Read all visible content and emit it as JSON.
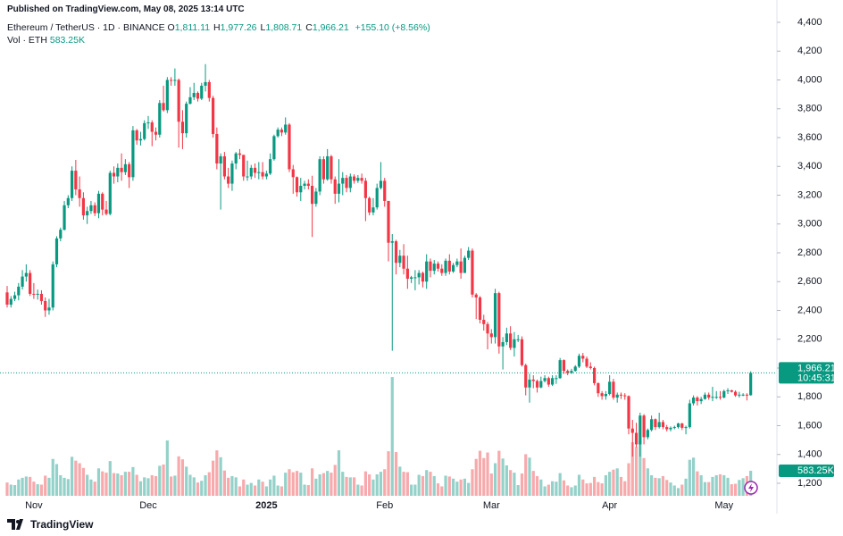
{
  "header": {
    "published": "Published on TradingView.com, May 08, 2025 13:14 UTC",
    "symbol": "Ethereum / TetherUS · 1D · BINANCE",
    "ohlc": [
      {
        "key": "O",
        "text": "1,811.11"
      },
      {
        "key": "H",
        "text": "1,977.26"
      },
      {
        "key": "L",
        "text": "1,808.71"
      },
      {
        "key": "C",
        "text": "1,966.21"
      }
    ],
    "change": "+155.10 (+8.56%)",
    "volume_title": "Vol · ETH",
    "volume_label": "583.25K"
  },
  "chart_data": {
    "type": "candlestick",
    "categories": [
      null,
      null,
      null,
      null,
      null,
      null,
      null,
      "Nov",
      null,
      null,
      null,
      null,
      null,
      null,
      null,
      null,
      null,
      null,
      null,
      null,
      null,
      null,
      null,
      null,
      null,
      null,
      null,
      null,
      null,
      null,
      null,
      null,
      null,
      null,
      null,
      null,
      null,
      "Dec",
      null,
      null,
      null,
      null,
      null,
      null,
      null,
      null,
      null,
      null,
      null,
      null,
      null,
      null,
      null,
      null,
      null,
      null,
      null,
      null,
      null,
      null,
      null,
      null,
      null,
      null,
      null,
      null,
      null,
      null,
      "2025",
      null,
      null,
      null,
      null,
      null,
      null,
      null,
      null,
      null,
      null,
      null,
      null,
      null,
      null,
      null,
      null,
      null,
      null,
      null,
      null,
      null,
      null,
      null,
      null,
      null,
      null,
      null,
      null,
      null,
      null,
      "Feb",
      null,
      null,
      null,
      null,
      null,
      null,
      null,
      null,
      null,
      null,
      null,
      null,
      null,
      null,
      null,
      null,
      null,
      null,
      null,
      null,
      null,
      null,
      null,
      null,
      null,
      null,
      null,
      "Mar",
      null,
      null,
      null,
      null,
      null,
      null,
      null,
      null,
      null,
      null,
      null,
      null,
      null,
      null,
      null,
      null,
      null,
      null,
      null,
      null,
      null,
      null,
      null,
      null,
      null,
      null,
      null,
      null,
      null,
      null,
      "Apr",
      null,
      null,
      null,
      null,
      null,
      null,
      null,
      null,
      null,
      null,
      null,
      null,
      null,
      null,
      null,
      null,
      null,
      null,
      null,
      null,
      null,
      null,
      null,
      null,
      null,
      null,
      null,
      null,
      null,
      "May",
      null,
      null,
      null,
      null,
      null,
      null,
      null
    ],
    "open": [
      2525,
      2440,
      2480,
      2505,
      2565,
      2635,
      2660,
      2515,
      2510,
      2515,
      2465,
      2400,
      2420,
      2720,
      2900,
      2960,
      3130,
      3180,
      3370,
      3240,
      3180,
      3060,
      3090,
      3130,
      3075,
      3210,
      3100,
      3070,
      3355,
      3330,
      3390,
      3360,
      3415,
      3325,
      3650,
      3580,
      3590,
      3700,
      3705,
      3640,
      3620,
      3840,
      3790,
      4000,
      3995,
      4000,
      3710,
      3630,
      3835,
      3880,
      3910,
      3870,
      3960,
      3985,
      3875,
      3625,
      3420,
      3470,
      3330,
      3280,
      3420,
      3490,
      3480,
      3330,
      3330,
      3390,
      3355,
      3360,
      3330,
      3350,
      3450,
      3610,
      3655,
      3635,
      3690,
      3380,
      3325,
      3220,
      3265,
      3280,
      3265,
      3140,
      3225,
      3450,
      3310,
      3470,
      3310,
      3210,
      3280,
      3320,
      3250,
      3330,
      3300,
      3320,
      3300,
      3180,
      3080,
      3115,
      3250,
      3300,
      3160,
      2870,
      2880,
      2730,
      2780,
      2690,
      2620,
      2630,
      2630,
      2660,
      2600,
      2740,
      2675,
      2725,
      2690,
      2660,
      2745,
      2670,
      2715,
      2740,
      2660,
      2765,
      2815,
      2510,
      2490,
      2335,
      2305,
      2240,
      2215,
      2520,
      2150,
      2180,
      2240,
      2140,
      2200,
      2200,
      2020,
      1865,
      1920,
      1910,
      1865,
      1910,
      1930,
      1885,
      1930,
      1930,
      2055,
      1980,
      1965,
      1980,
      2010,
      2085,
      2065,
      2010,
      2000,
      1895,
      1825,
      1805,
      1820,
      1905,
      1795,
      1815,
      1810,
      1805,
      1580,
      1550,
      1470,
      1670,
      1520,
      1570,
      1645,
      1590,
      1625,
      1590,
      1575,
      1585,
      1590,
      1615,
      1585,
      1590,
      1755,
      1795,
      1770,
      1785,
      1815,
      1795,
      1800,
      1800,
      1795,
      1840,
      1845,
      1835,
      1810,
      1815,
      1815,
      1811.11
    ],
    "high": [
      2570,
      2500,
      2530,
      2590,
      2680,
      2720,
      2680,
      2590,
      2545,
      2540,
      2490,
      2480,
      2740,
      2915,
      2975,
      3160,
      3200,
      3400,
      3445,
      3330,
      3220,
      3120,
      3160,
      3150,
      3230,
      3220,
      3160,
      3370,
      3400,
      3420,
      3490,
      3450,
      3430,
      3680,
      3660,
      3640,
      3720,
      3750,
      3720,
      3670,
      3860,
      3960,
      4020,
      4020,
      4080,
      4010,
      3790,
      3850,
      3950,
      3980,
      3920,
      3980,
      4110,
      4000,
      3890,
      3670,
      3490,
      3500,
      3390,
      3440,
      3500,
      3520,
      3480,
      3440,
      3410,
      3420,
      3430,
      3430,
      3370,
      3490,
      3620,
      3670,
      3670,
      3740,
      3700,
      3410,
      3330,
      3320,
      3300,
      3310,
      3335,
      3250,
      3470,
      3470,
      3520,
      3480,
      3330,
      3450,
      3360,
      3340,
      3350,
      3345,
      3340,
      3350,
      3320,
      3190,
      3180,
      3280,
      3430,
      3320,
      3160,
      2930,
      2890,
      2820,
      2860,
      2780,
      2640,
      2680,
      2680,
      2670,
      2790,
      2760,
      2750,
      2740,
      2720,
      2760,
      2790,
      2730,
      2760,
      2830,
      2780,
      2840,
      2830,
      2520,
      2500,
      2370,
      2320,
      2270,
      2550,
      2530,
      2215,
      2280,
      2290,
      2250,
      2230,
      2220,
      2030,
      1960,
      1950,
      1920,
      1940,
      1950,
      1940,
      1950,
      1950,
      2070,
      2060,
      1990,
      1995,
      2020,
      2100,
      2105,
      2080,
      2040,
      2010,
      1900,
      1840,
      1840,
      1950,
      1925,
      1830,
      1830,
      1825,
      1810,
      1640,
      1620,
      1690,
      1680,
      1580,
      1670,
      1650,
      1690,
      1640,
      1605,
      1595,
      1600,
      1620,
      1620,
      1600,
      1780,
      1810,
      1805,
      1800,
      1830,
      1830,
      1870,
      1840,
      1840,
      1850,
      1860,
      1850,
      1845,
      1835,
      1825,
      1825,
      1977.26
    ],
    "low": [
      2420,
      2420,
      2465,
      2470,
      2545,
      2600,
      2500,
      2480,
      2475,
      2440,
      2355,
      2370,
      2400,
      2700,
      2880,
      2955,
      3110,
      3160,
      3200,
      3120,
      3030,
      3000,
      3070,
      3055,
      3040,
      3060,
      3060,
      3060,
      3280,
      3290,
      3300,
      3340,
      3250,
      3300,
      3550,
      3545,
      3580,
      3660,
      3540,
      3580,
      3600,
      3780,
      3770,
      3960,
      3960,
      3530,
      3520,
      3600,
      3830,
      3860,
      3850,
      3860,
      3920,
      3850,
      3600,
      3380,
      3100,
      3310,
      3250,
      3230,
      3380,
      3450,
      3300,
      3300,
      3310,
      3320,
      3310,
      3310,
      3310,
      3340,
      3440,
      3600,
      3610,
      3620,
      3360,
      3210,
      3190,
      3160,
      3240,
      3240,
      2910,
      3120,
      3200,
      3280,
      3300,
      3280,
      3140,
      3150,
      3200,
      3220,
      3220,
      3280,
      3285,
      3280,
      3020,
      3060,
      3060,
      3100,
      3240,
      3120,
      2740,
      2120,
      2650,
      2700,
      2650,
      2550,
      2590,
      2540,
      2580,
      2560,
      2550,
      2630,
      2650,
      2670,
      2640,
      2640,
      2650,
      2660,
      2700,
      2620,
      2660,
      2750,
      2490,
      2340,
      2310,
      2260,
      2130,
      2170,
      2170,
      2100,
      1990,
      2160,
      2125,
      2080,
      2180,
      2010,
      1810,
      1760,
      1860,
      1830,
      1860,
      1900,
      1870,
      1875,
      1890,
      1925,
      1960,
      1950,
      1960,
      1975,
      2000,
      2040,
      2000,
      1990,
      1880,
      1800,
      1780,
      1780,
      1810,
      1780,
      1760,
      1785,
      1780,
      1540,
      1385,
      1450,
      1385,
      1470,
      1505,
      1560,
      1570,
      1580,
      1575,
      1560,
      1560,
      1575,
      1580,
      1570,
      1540,
      1580,
      1740,
      1740,
      1750,
      1780,
      1780,
      1770,
      1785,
      1780,
      1790,
      1820,
      1830,
      1800,
      1795,
      1805,
      1775,
      1808.71
    ],
    "close": [
      2440,
      2480,
      2505,
      2565,
      2635,
      2660,
      2515,
      2510,
      2515,
      2465,
      2400,
      2420,
      2720,
      2900,
      2960,
      3130,
      3180,
      3370,
      3240,
      3180,
      3060,
      3090,
      3130,
      3075,
      3210,
      3100,
      3070,
      3355,
      3330,
      3390,
      3360,
      3415,
      3325,
      3650,
      3580,
      3590,
      3700,
      3705,
      3640,
      3620,
      3840,
      3790,
      4000,
      3995,
      4000,
      3710,
      3630,
      3835,
      3880,
      3910,
      3870,
      3960,
      3985,
      3875,
      3625,
      3420,
      3470,
      3330,
      3280,
      3420,
      3490,
      3480,
      3330,
      3330,
      3390,
      3355,
      3360,
      3330,
      3350,
      3450,
      3610,
      3655,
      3635,
      3690,
      3380,
      3325,
      3220,
      3265,
      3280,
      3265,
      3140,
      3225,
      3450,
      3310,
      3470,
      3310,
      3210,
      3280,
      3320,
      3250,
      3330,
      3300,
      3320,
      3300,
      3180,
      3080,
      3115,
      3250,
      3300,
      3160,
      2870,
      2880,
      2730,
      2780,
      2690,
      2620,
      2630,
      2630,
      2660,
      2600,
      2740,
      2675,
      2725,
      2690,
      2660,
      2745,
      2670,
      2715,
      2740,
      2660,
      2765,
      2815,
      2510,
      2490,
      2335,
      2305,
      2240,
      2215,
      2520,
      2150,
      2180,
      2240,
      2140,
      2200,
      2200,
      2020,
      1865,
      1920,
      1910,
      1865,
      1910,
      1930,
      1885,
      1930,
      1930,
      2055,
      1980,
      1965,
      1980,
      2010,
      2085,
      2065,
      2010,
      2000,
      1895,
      1825,
      1805,
      1820,
      1905,
      1795,
      1815,
      1810,
      1805,
      1580,
      1550,
      1470,
      1670,
      1520,
      1570,
      1645,
      1590,
      1625,
      1590,
      1575,
      1585,
      1590,
      1615,
      1585,
      1590,
      1755,
      1795,
      1770,
      1785,
      1815,
      1795,
      1800,
      1800,
      1795,
      1840,
      1845,
      1835,
      1810,
      1815,
      1815,
      1811.11,
      1966.21
    ],
    "volume": [
      310,
      260,
      250,
      380,
      420,
      450,
      440,
      330,
      270,
      260,
      470,
      420,
      860,
      740,
      480,
      420,
      390,
      910,
      820,
      760,
      650,
      490,
      380,
      330,
      640,
      570,
      540,
      810,
      530,
      520,
      480,
      560,
      560,
      670,
      490,
      340,
      430,
      410,
      480,
      460,
      700,
      730,
      1290,
      450,
      470,
      920,
      850,
      680,
      490,
      430,
      310,
      350,
      480,
      550,
      820,
      1060,
      900,
      590,
      420,
      460,
      430,
      220,
      380,
      260,
      300,
      240,
      380,
      330,
      220,
      380,
      470,
      240,
      220,
      540,
      620,
      550,
      580,
      540,
      260,
      250,
      640,
      400,
      500,
      530,
      580,
      540,
      720,
      1060,
      560,
      440,
      430,
      430,
      260,
      240,
      570,
      500,
      380,
      500,
      560,
      620,
      1040,
      2770,
      1020,
      680,
      560,
      550,
      260,
      260,
      490,
      460,
      600,
      560,
      460,
      290,
      220,
      470,
      450,
      400,
      330,
      380,
      400,
      300,
      620,
      860,
      1050,
      880,
      1010,
      520,
      760,
      1050,
      870,
      710,
      600,
      540,
      250,
      520,
      970,
      890,
      580,
      460,
      380,
      220,
      260,
      340,
      330,
      530,
      360,
      240,
      200,
      240,
      490,
      380,
      290,
      300,
      440,
      320,
      290,
      480,
      560,
      610,
      640,
      440,
      340,
      760,
      1250,
      1140,
      1280,
      880,
      640,
      480,
      420,
      410,
      460,
      370,
      310,
      240,
      180,
      260,
      400,
      840,
      890,
      570,
      480,
      320,
      320,
      440,
      480,
      500,
      480,
      420,
      270,
      280,
      370,
      410,
      460,
      583.25
    ],
    "up_color": "#089981",
    "down_color": "#f23645",
    "volume_up_color": "#93d1c9",
    "volume_down_color": "#f7a9ac",
    "ylim": [
      1020,
      4555
    ],
    "yticks": [
      {
        "value": 1200,
        "label": "1,200"
      },
      {
        "value": 1400,
        "label": "1,400"
      },
      {
        "value": 1600,
        "label": "1,600"
      },
      {
        "value": 1800,
        "label": "1,800"
      },
      {
        "value": 2000,
        "label": "2,000"
      },
      {
        "value": 2200,
        "label": "2,200"
      },
      {
        "value": 2400,
        "label": "2,400"
      },
      {
        "value": 2600,
        "label": "2,600"
      },
      {
        "value": 2800,
        "label": "2,800"
      },
      {
        "value": 3000,
        "label": "3,000"
      },
      {
        "value": 3200,
        "label": "3,200"
      },
      {
        "value": 3400,
        "label": "3,400"
      },
      {
        "value": 3600,
        "label": "3,600"
      },
      {
        "value": 3800,
        "label": "3,800"
      },
      {
        "value": 4000,
        "label": "4,000"
      },
      {
        "value": 4200,
        "label": "4,200"
      },
      {
        "value": 4400,
        "label": "4,400"
      }
    ],
    "last_price": {
      "value": 1966.21,
      "label": "1,966.21",
      "countdown": "10:45:31"
    }
  },
  "footer": {
    "brand": "TradingView"
  }
}
